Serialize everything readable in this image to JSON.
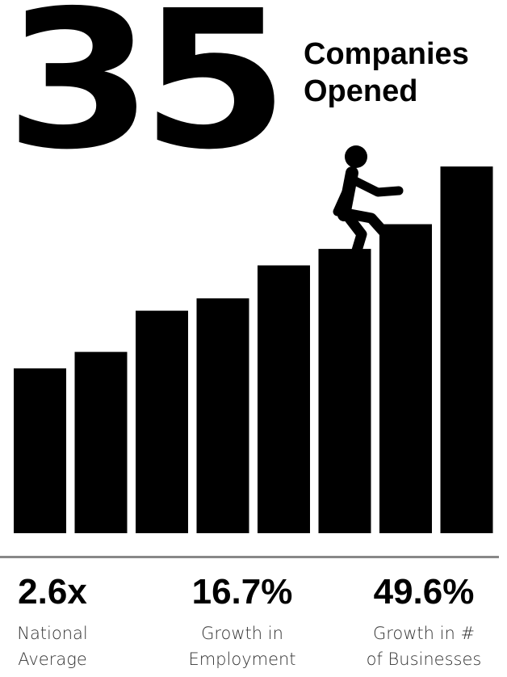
{
  "headline": {
    "number": "35",
    "line1": "Companies",
    "line2": "Opened"
  },
  "stairs": {
    "step_levels": [
      0.4,
      0.44,
      0.54,
      0.57,
      0.65,
      0.69,
      0.75,
      0.89
    ],
    "color": "#000000"
  },
  "figure_icon": "walking-person-icon",
  "stats": [
    {
      "value": "2.6x",
      "label_line1": "National",
      "label_line2": "Average"
    },
    {
      "value": "16.7%",
      "label_line1": "Growth in",
      "label_line2": "Employment"
    },
    {
      "value": "49.6%",
      "label_line1": "Growth in #",
      "label_line2": "of Businesses"
    }
  ]
}
